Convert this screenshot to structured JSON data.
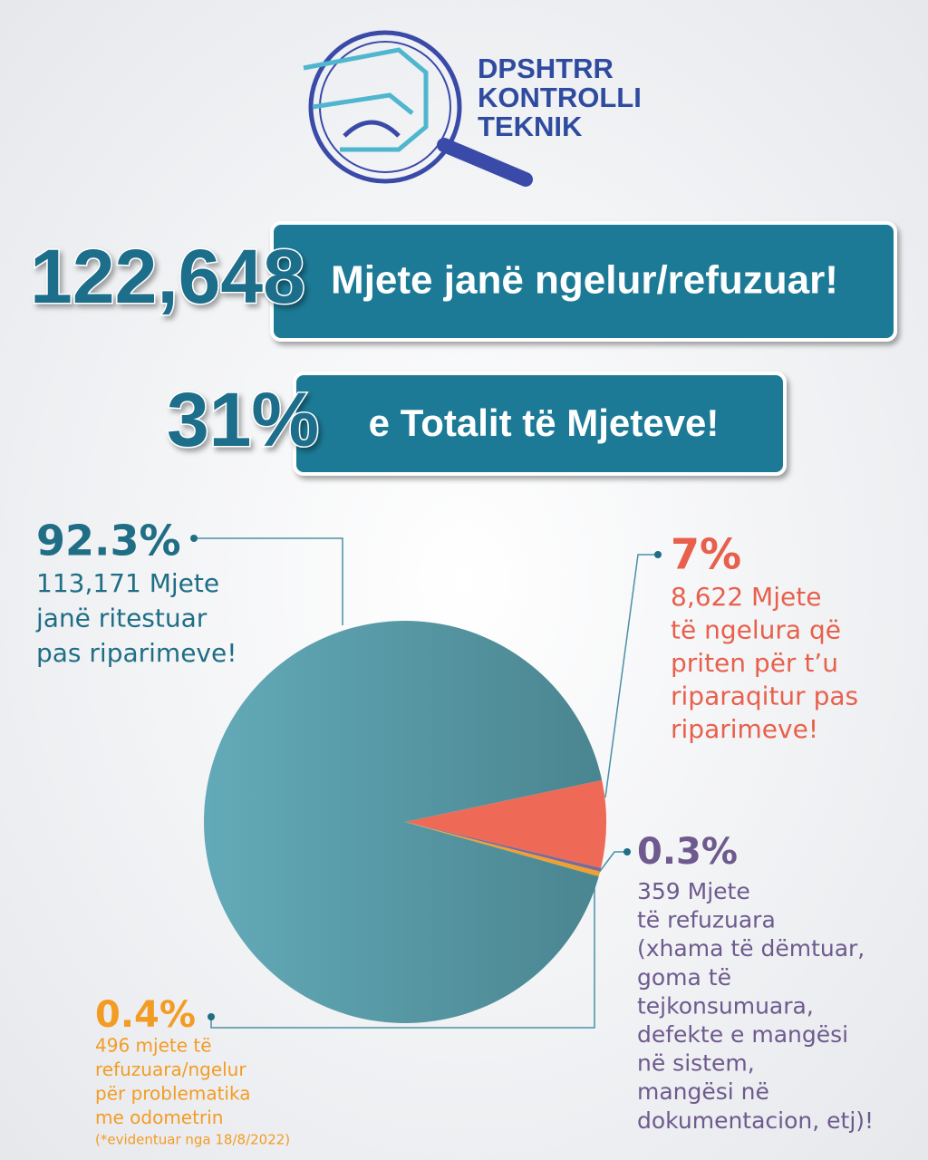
{
  "logo": {
    "lines": [
      "DPSHTRR",
      "KONTROLLI",
      "TEKNIK"
    ]
  },
  "headline": {
    "count": "122,648",
    "count_text": "Mjete janë ngelur/refuzuar!",
    "share": "31%",
    "share_text": "e Totalit të Mjeteve!"
  },
  "chart_data": {
    "type": "pie",
    "values": [
      7,
      0.3,
      0.4,
      92.3
    ],
    "value_labels": [
      "7%",
      "0.3%",
      "0.4%",
      "92.3%"
    ],
    "colors": [
      "#ee6a56",
      "#7b6a9a",
      "#f0a030",
      "#55a0ae"
    ],
    "descriptions": [
      [
        "8,622 Mjete",
        "të ngelura që",
        "priten për t’u",
        "riparaqitur pas",
        "riparimeve!"
      ],
      [
        "359 Mjete",
        "të refuzuara",
        "(xhama të dëmtuar,",
        "goma të",
        "tejkonsumuara,",
        "defekte e mangësi",
        "në sistem,",
        "mangësi në",
        "dokumentacion, etj)!"
      ],
      [
        "496 mjete të",
        "refuzuara/ngelur",
        "për problematika",
        "me odometrin"
      ],
      [
        "113,171 Mjete",
        "janë ritestuar",
        "pas riparimeve!"
      ]
    ],
    "footnote": "(*evidentuar nga 18/8/2022)"
  }
}
